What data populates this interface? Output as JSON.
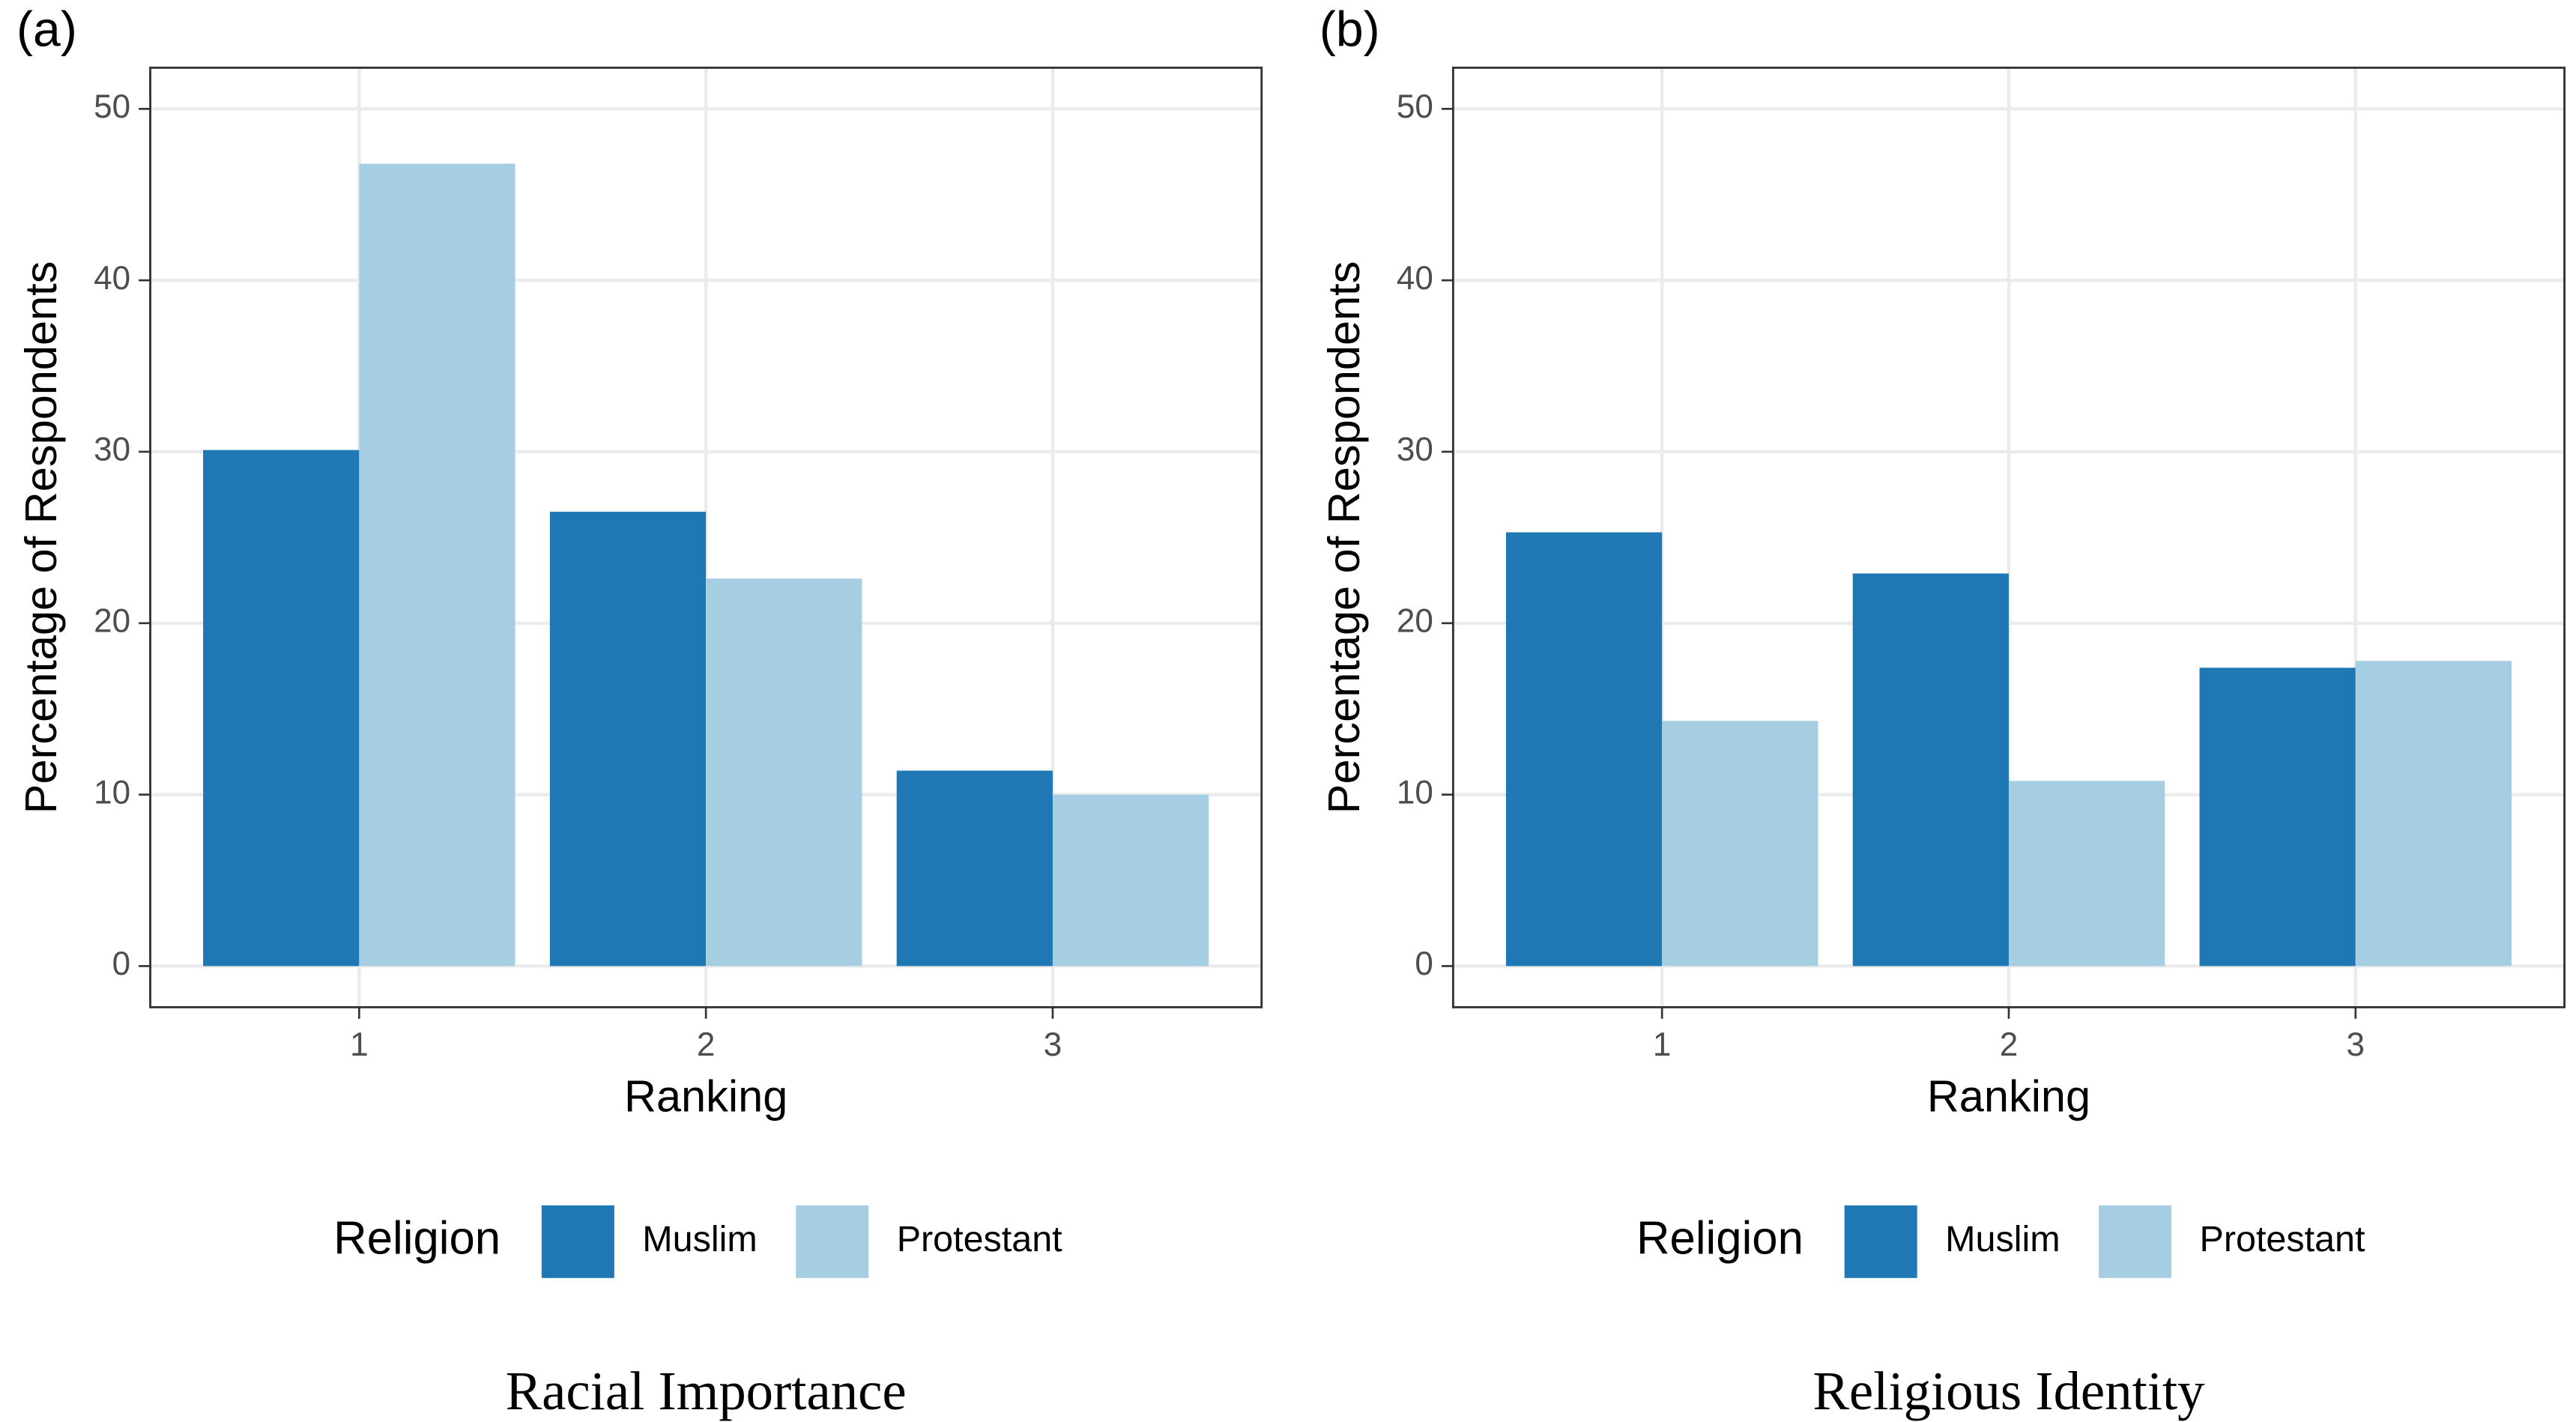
{
  "chart_data": [
    {
      "type": "bar",
      "panel_label": "(a)",
      "caption": "Racial Importance",
      "x_label": "Ranking",
      "y_label": "Percentage of Respondents",
      "legend_title": "Religion",
      "categories": [
        "1",
        "2",
        "3"
      ],
      "series": [
        {
          "name": "Muslim",
          "color": "#1f78b4",
          "values": [
            30.1,
            26.5,
            11.4
          ]
        },
        {
          "name": "Protestant",
          "color": "#a6cee3",
          "values": [
            46.8,
            22.6,
            10.0
          ]
        }
      ],
      "ylim": [
        -2.4,
        52.4
      ],
      "yticks": [
        0,
        10,
        20,
        30,
        40,
        50
      ],
      "grid": true
    },
    {
      "type": "bar",
      "panel_label": "(b)",
      "caption": "Religious Identity",
      "x_label": "Ranking",
      "y_label": "Percentage of Respondents",
      "legend_title": "Religion",
      "categories": [
        "1",
        "2",
        "3"
      ],
      "series": [
        {
          "name": "Muslim",
          "color": "#1f78b4",
          "values": [
            25.3,
            22.9,
            17.4
          ]
        },
        {
          "name": "Protestant",
          "color": "#a6cee3",
          "values": [
            14.3,
            10.8,
            17.8
          ]
        }
      ],
      "ylim": [
        -2.4,
        52.4
      ],
      "yticks": [
        0,
        10,
        20,
        30,
        40,
        50
      ],
      "grid": true
    }
  ]
}
